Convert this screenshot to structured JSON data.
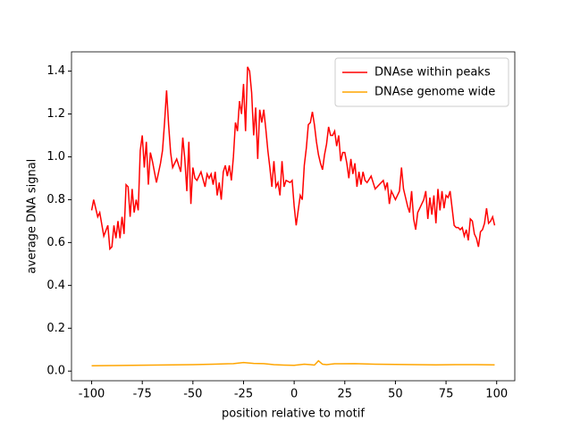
{
  "chart_data": {
    "type": "line",
    "xlabel": "position relative to motif",
    "ylabel": "average DNA signal",
    "xlim": [
      -109.95,
      108.95
    ],
    "xticks": [
      -100,
      -75,
      -50,
      -25,
      0,
      25,
      50,
      75,
      100
    ],
    "ylim": [
      -0.045,
      1.49
    ],
    "yticks": [
      {
        "value": 0,
        "label": "0.0"
      },
      0.2,
      0.4,
      0.6,
      0.8,
      {
        "value": 1,
        "label": "1.0"
      },
      1.2,
      1.4
    ],
    "legend": "upper right",
    "series": [
      {
        "name": "DNAse within peaks",
        "color": "#ff0000",
        "x": [
          -100,
          -99,
          -97,
          -96,
          -94,
          -92,
          -91,
          -90,
          -89,
          -88,
          -87,
          -86,
          -85,
          -84,
          -83,
          -82,
          -81,
          -80,
          -79,
          -78,
          -77,
          -76,
          -75,
          -74,
          -73,
          -72,
          -71,
          -70,
          -68,
          -66,
          -65,
          -64,
          -63,
          -62,
          -61,
          -60,
          -58,
          -56,
          -55,
          -54,
          -53,
          -52,
          -51,
          -50,
          -49,
          -48,
          -46,
          -44,
          -43,
          -42,
          -41,
          -40,
          -39,
          -38,
          -37,
          -36,
          -35,
          -34,
          -33,
          -32,
          -31,
          -30,
          -29,
          -28,
          -27,
          -26,
          -25,
          -24,
          -23,
          -22,
          -21,
          -20,
          -19,
          -18,
          -17,
          -16,
          -15,
          -14,
          -13,
          -12,
          -11,
          -10,
          -9,
          -8,
          -7,
          -6,
          -5,
          -4,
          -2,
          -1,
          0,
          1,
          2,
          3,
          4,
          5,
          6,
          7,
          8,
          9,
          10,
          11,
          12,
          13,
          14,
          15,
          16,
          17,
          18,
          19,
          20,
          21,
          22,
          23,
          24,
          25,
          26,
          27,
          28,
          29,
          30,
          31,
          32,
          33,
          34,
          35,
          36,
          38,
          40,
          42,
          44,
          45,
          46,
          47,
          48,
          50,
          52,
          53,
          54,
          56,
          57,
          58,
          59,
          60,
          61,
          62,
          64,
          65,
          66,
          67,
          68,
          69,
          70,
          71,
          72,
          73,
          74,
          75,
          76,
          77,
          78,
          79,
          80,
          81,
          82,
          83,
          84,
          85,
          86,
          87,
          88,
          89,
          90,
          91,
          92,
          93,
          94,
          95,
          96,
          97,
          98,
          99
        ],
        "values": [
          0.75,
          0.8,
          0.72,
          0.74,
          0.63,
          0.68,
          0.57,
          0.58,
          0.68,
          0.62,
          0.7,
          0.62,
          0.72,
          0.64,
          0.87,
          0.86,
          0.72,
          0.85,
          0.74,
          0.8,
          0.75,
          1.03,
          1.1,
          0.95,
          1.07,
          0.87,
          1.02,
          0.98,
          0.88,
          0.97,
          1.03,
          1.16,
          1.31,
          1.15,
          1.02,
          0.95,
          0.99,
          0.93,
          1.09,
          0.99,
          0.84,
          1.07,
          0.78,
          0.95,
          0.9,
          0.89,
          0.93,
          0.86,
          0.92,
          0.9,
          0.92,
          0.87,
          0.93,
          0.82,
          0.88,
          0.8,
          0.93,
          0.96,
          0.91,
          0.96,
          0.89,
          1.0,
          1.16,
          1.12,
          1.26,
          1.2,
          1.34,
          1.12,
          1.42,
          1.4,
          1.3,
          1.1,
          1.23,
          0.99,
          1.22,
          1.16,
          1.22,
          1.13,
          1.03,
          0.95,
          0.86,
          0.98,
          0.86,
          0.88,
          0.82,
          0.98,
          0.86,
          0.89,
          0.88,
          0.89,
          0.77,
          0.68,
          0.75,
          0.82,
          0.8,
          0.96,
          1.04,
          1.15,
          1.16,
          1.21,
          1.15,
          1.07,
          1.01,
          0.97,
          0.94,
          1.01,
          1.06,
          1.14,
          1.1,
          1.1,
          1.12,
          1.05,
          1.1,
          0.98,
          1.02,
          1.02,
          0.97,
          0.9,
          0.99,
          0.92,
          0.97,
          0.86,
          0.93,
          0.87,
          0.93,
          0.89,
          0.88,
          0.91,
          0.85,
          0.87,
          0.89,
          0.85,
          0.88,
          0.78,
          0.84,
          0.8,
          0.84,
          0.95,
          0.85,
          0.77,
          0.74,
          0.84,
          0.71,
          0.66,
          0.74,
          0.76,
          0.8,
          0.84,
          0.71,
          0.81,
          0.73,
          0.82,
          0.69,
          0.85,
          0.75,
          0.84,
          0.76,
          0.82,
          0.81,
          0.84,
          0.76,
          0.68,
          0.67,
          0.67,
          0.66,
          0.67,
          0.63,
          0.66,
          0.61,
          0.71,
          0.7,
          0.64,
          0.62,
          0.58,
          0.65,
          0.66,
          0.69,
          0.76,
          0.69,
          0.7,
          0.72,
          0.68
        ]
      },
      {
        "name": "DNAse genome wide",
        "color": "#ffa500",
        "x": [
          -100,
          -90,
          -80,
          -70,
          -60,
          -50,
          -40,
          -30,
          -25,
          -20,
          -15,
          -10,
          -5,
          0,
          5,
          8,
          10,
          12,
          14,
          16,
          20,
          30,
          40,
          50,
          60,
          70,
          80,
          90,
          99
        ],
        "values": [
          0.025,
          0.026,
          0.027,
          0.028,
          0.029,
          0.03,
          0.032,
          0.035,
          0.04,
          0.036,
          0.035,
          0.03,
          0.028,
          0.027,
          0.032,
          0.03,
          0.028,
          0.048,
          0.032,
          0.03,
          0.034,
          0.035,
          0.032,
          0.031,
          0.03,
          0.029,
          0.03,
          0.03,
          0.029
        ]
      }
    ]
  }
}
